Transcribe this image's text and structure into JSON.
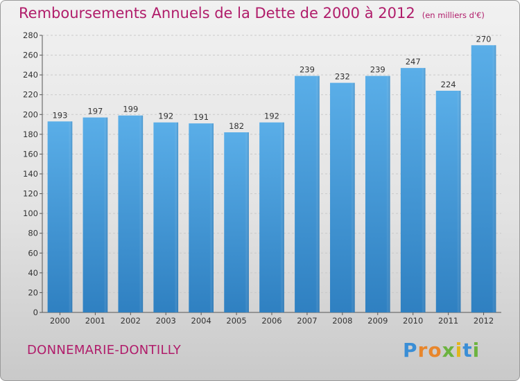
{
  "title": "Remboursements Annuels de la Dette de 2000 à 2012",
  "unit_note": "(en milliers d'€)",
  "location": "DONNEMARIE-DONTILLY",
  "logo_text": "Proxiti",
  "colors": {
    "bar_top": "#5aaee8",
    "bar_bottom": "#2f80c1",
    "title": "#b01c6a"
  },
  "chart_data": {
    "type": "bar",
    "title": "Remboursements Annuels de la Dette de 2000 à 2012",
    "xlabel": "",
    "ylabel": "",
    "categories": [
      "2000",
      "2001",
      "2002",
      "2003",
      "2004",
      "2005",
      "2006",
      "2007",
      "2008",
      "2009",
      "2010",
      "2011",
      "2012"
    ],
    "values": [
      193,
      197,
      199,
      192,
      191,
      182,
      192,
      239,
      232,
      239,
      247,
      224,
      270
    ],
    "ylim": [
      0,
      280
    ],
    "yticks": [
      0,
      20,
      40,
      60,
      80,
      100,
      120,
      140,
      160,
      180,
      200,
      220,
      240,
      260,
      280
    ],
    "grid": true
  }
}
